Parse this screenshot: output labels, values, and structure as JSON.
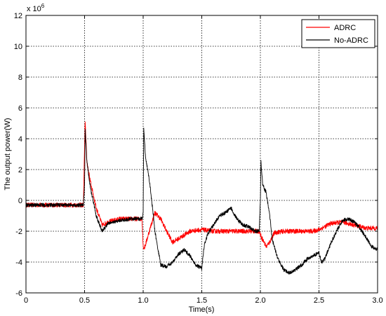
{
  "chart_data": {
    "type": "line",
    "title": "",
    "xlabel": "Time(s)",
    "ylabel": "The output power(W)",
    "exponent_label": "x 10",
    "exponent_power": "6",
    "xlim": [
      0,
      3
    ],
    "ylim": [
      -6,
      12
    ],
    "xticks": [
      0,
      0.5,
      1,
      1.5,
      2,
      2.5,
      3
    ],
    "xtick_labels": [
      "0",
      "0.5",
      "1.0",
      "1.5",
      "2.0",
      "2.5",
      "3.0"
    ],
    "yticks": [
      -6,
      -4,
      -2,
      0,
      2,
      4,
      6,
      8,
      10,
      12
    ],
    "ytick_labels": [
      "-6",
      "-4",
      "-2",
      "0",
      "2",
      "4",
      "6",
      "8",
      "10",
      "12"
    ],
    "grid": true,
    "legend_position": "top-right",
    "series": [
      {
        "name": "ADRC",
        "color": "#ff0000",
        "noise": 0.15,
        "x": [
          0,
          0.49,
          0.5,
          0.505,
          0.52,
          0.55,
          0.6,
          0.65,
          0.7,
          0.8,
          0.9,
          0.99,
          1.0,
          1.01,
          1.03,
          1.06,
          1.1,
          1.15,
          1.2,
          1.25,
          1.3,
          1.4,
          1.5,
          1.6,
          1.7,
          1.8,
          1.9,
          1.99,
          2.0,
          2.01,
          2.05,
          2.08,
          2.12,
          2.2,
          2.3,
          2.4,
          2.45,
          2.5,
          2.6,
          2.7,
          2.8,
          2.9,
          3.0
        ],
        "y": [
          -0.3,
          -0.3,
          3.5,
          5.2,
          2.5,
          1.2,
          -0.5,
          -1.6,
          -1.4,
          -1.2,
          -1.2,
          -1.2,
          -3.0,
          -3.1,
          -2.6,
          -1.8,
          -0.8,
          -1.2,
          -2.0,
          -2.7,
          -2.5,
          -2.0,
          -1.9,
          -2.0,
          -2.0,
          -2.0,
          -2.0,
          -2.0,
          -2.2,
          -2.4,
          -3.0,
          -2.7,
          -2.1,
          -2.0,
          -2.0,
          -2.0,
          -2.0,
          -1.9,
          -1.5,
          -1.4,
          -1.6,
          -1.8,
          -1.8
        ]
      },
      {
        "name": "No-ADRC",
        "color": "#000000",
        "noise": 0.12,
        "x": [
          0,
          0.49,
          0.5,
          0.505,
          0.52,
          0.55,
          0.6,
          0.65,
          0.7,
          0.8,
          0.9,
          0.99,
          1.0,
          1.005,
          1.02,
          1.05,
          1.08,
          1.1,
          1.15,
          1.2,
          1.25,
          1.3,
          1.35,
          1.4,
          1.45,
          1.5,
          1.52,
          1.55,
          1.6,
          1.65,
          1.7,
          1.75,
          1.8,
          1.85,
          1.9,
          1.95,
          1.99,
          2.0,
          2.005,
          2.02,
          2.05,
          2.08,
          2.1,
          2.15,
          2.2,
          2.25,
          2.3,
          2.35,
          2.4,
          2.45,
          2.5,
          2.52,
          2.55,
          2.6,
          2.65,
          2.7,
          2.75,
          2.8,
          2.85,
          2.9,
          2.95,
          3.0
        ],
        "y": [
          -0.3,
          -0.3,
          1.0,
          4.5,
          2.5,
          0.8,
          -1.0,
          -2.0,
          -1.5,
          -1.3,
          -1.2,
          -1.2,
          -0.8,
          4.6,
          2.8,
          1.5,
          -0.5,
          -2.0,
          -4.2,
          -4.3,
          -4.0,
          -3.5,
          -3.2,
          -3.6,
          -4.2,
          -4.4,
          -3.0,
          -2.2,
          -1.6,
          -1.0,
          -0.8,
          -0.5,
          -1.2,
          -1.6,
          -1.7,
          -2.0,
          -2.0,
          0.0,
          2.5,
          1.0,
          0.5,
          -1.0,
          -2.5,
          -3.8,
          -4.5,
          -4.7,
          -4.5,
          -4.2,
          -3.8,
          -3.6,
          -3.4,
          -4.0,
          -3.8,
          -2.8,
          -2.0,
          -1.3,
          -1.2,
          -1.4,
          -1.8,
          -2.4,
          -3.0,
          -3.2
        ]
      }
    ]
  }
}
